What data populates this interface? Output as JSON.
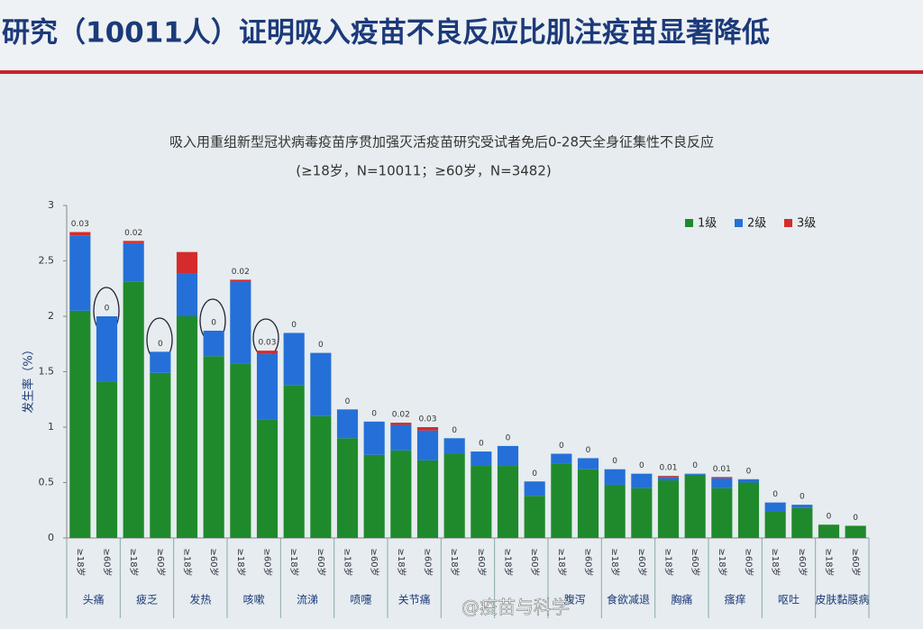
{
  "header": {
    "title": "研究（10011人）证明吸入疫苗不良反应比肌注疫苗显著降低"
  },
  "chart_data": {
    "type": "stacked-bar",
    "title": "吸入用重组新型冠状病毒疫苗序贯加强灭活疫苗研究受试者免后0-28天全身征集性不良反应",
    "subtitle": "(≥18岁，N=10011；≥60岁，N=3482)",
    "ylabel": "发生率（%）",
    "watermark": "@疫苗与科学",
    "groups": [
      "头痛",
      "疲乏",
      "发热",
      "咳嗽",
      "流涕",
      "喷嚏",
      "关节痛",
      null,
      null,
      "腹泻",
      "食欲减退",
      "胸痛",
      "瘙痒",
      "呕吐",
      "皮肤黏膜病"
    ],
    "categories": [
      "≥18岁",
      "≥60岁",
      "≥18岁",
      "≥60岁",
      "≥18岁",
      "≥60岁",
      "≥18岁",
      "≥60岁",
      "≥18岁",
      "≥60岁",
      "≥18岁",
      "≥60岁",
      "≥18岁",
      "≥60岁",
      "≥18岁",
      "≥60岁",
      "≥18岁",
      "≥60岁",
      "≥18岁",
      "≥60岁",
      "≥18岁",
      "≥60岁",
      "≥18岁",
      "≥60岁",
      "≥18岁",
      "≥60岁",
      "≥18岁",
      "≥60岁",
      "≥18岁",
      "≥60岁"
    ],
    "series": [
      {
        "name": "1级",
        "color": "#1f8a2b",
        "values": [
          2.05,
          1.41,
          2.31,
          1.49,
          2.0,
          1.64,
          1.57,
          1.07,
          1.38,
          1.1,
          0.9,
          0.75,
          0.79,
          0.7,
          0.76,
          0.65,
          0.65,
          0.38,
          0.67,
          0.62,
          0.48,
          0.45,
          0.52,
          0.57,
          0.45,
          0.5,
          0.24,
          0.27,
          0.12,
          0.11
        ]
      },
      {
        "name": "2级",
        "color": "#2470d8",
        "values": [
          0.68,
          0.59,
          0.35,
          0.19,
          0.39,
          0.23,
          0.74,
          0.59,
          0.47,
          0.57,
          0.26,
          0.3,
          0.23,
          0.27,
          0.14,
          0.13,
          0.18,
          0.13,
          0.09,
          0.1,
          0.14,
          0.13,
          0.03,
          0.01,
          0.09,
          0.03,
          0.08,
          0.03,
          0,
          0
        ]
      },
      {
        "name": "3级",
        "color": "#d52b2b",
        "values": [
          0.03,
          0,
          0.02,
          0,
          0.19,
          0,
          0.02,
          0.03,
          0,
          0,
          0,
          0,
          0.02,
          0.03,
          0,
          0,
          0,
          0,
          0,
          0,
          0,
          0,
          0.01,
          0,
          0.01,
          0,
          0,
          0,
          0,
          0
        ],
        "value_labels": [
          "0.03",
          "0",
          "0.02",
          "0",
          null,
          "0",
          "0.02",
          "0.03",
          "0",
          "0",
          "0",
          "0",
          "0.02",
          "0.03",
          "0",
          "0",
          "0",
          "0",
          "0",
          "0",
          "0",
          "0",
          "0.01",
          "0",
          "0.01",
          "0",
          "0",
          "0",
          "0",
          "0"
        ]
      }
    ],
    "ylim": [
      0,
      3
    ],
    "yticks": [
      0,
      0.5,
      1,
      1.5,
      2,
      2.5,
      3
    ],
    "legend": "top-right"
  }
}
